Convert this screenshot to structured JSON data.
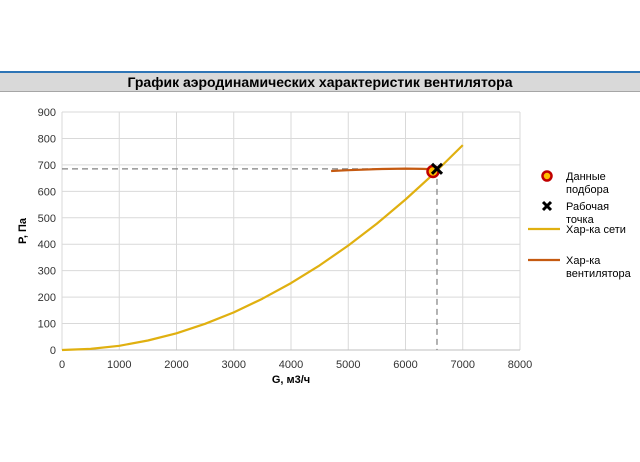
{
  "chart_data": {
    "type": "line",
    "title": "График аэродинамических характеристик вентилятора",
    "xlabel": "G, м3/ч",
    "ylabel": "P, Па",
    "xlim": [
      0,
      8000
    ],
    "ylim": [
      0,
      900
    ],
    "x_ticks": [
      0,
      1000,
      2000,
      3000,
      4000,
      5000,
      6000,
      7000,
      8000
    ],
    "y_ticks": [
      0,
      100,
      200,
      300,
      400,
      500,
      600,
      700,
      800,
      900
    ],
    "grid": true,
    "legend_position": "right",
    "series": [
      {
        "name": "Данные подбора",
        "kind": "marker",
        "marker": "circle",
        "color": "#c00000",
        "fill": "#ffc000",
        "points": [
          {
            "x": 6480,
            "y": 675
          }
        ]
      },
      {
        "name": "Рабочая точка",
        "kind": "marker",
        "marker": "x",
        "color": "#000000",
        "points": [
          {
            "x": 6550,
            "y": 685
          }
        ]
      },
      {
        "name": "Хар-ка сети",
        "kind": "line",
        "color": "#e0b010",
        "points": [
          {
            "x": 0,
            "y": 0
          },
          {
            "x": 500,
            "y": 4
          },
          {
            "x": 1000,
            "y": 16
          },
          {
            "x": 1500,
            "y": 36
          },
          {
            "x": 2000,
            "y": 63
          },
          {
            "x": 2500,
            "y": 99
          },
          {
            "x": 3000,
            "y": 142
          },
          {
            "x": 3500,
            "y": 194
          },
          {
            "x": 4000,
            "y": 253
          },
          {
            "x": 4500,
            "y": 320
          },
          {
            "x": 5000,
            "y": 395
          },
          {
            "x": 5500,
            "y": 478
          },
          {
            "x": 6000,
            "y": 569
          },
          {
            "x": 6500,
            "y": 668
          },
          {
            "x": 7000,
            "y": 775
          }
        ]
      },
      {
        "name": "Хар-ка вентилятора",
        "kind": "line",
        "color": "#c55a11",
        "points": [
          {
            "x": 4700,
            "y": 677
          },
          {
            "x": 5000,
            "y": 680
          },
          {
            "x": 5500,
            "y": 684
          },
          {
            "x": 6000,
            "y": 686
          },
          {
            "x": 6300,
            "y": 685
          },
          {
            "x": 6550,
            "y": 683
          }
        ]
      }
    ],
    "guides": {
      "x": 6550,
      "y": 685,
      "color": "#808080"
    }
  },
  "legend": [
    {
      "key": "data",
      "lines": [
        "Данные",
        "подбора"
      ]
    },
    {
      "key": "work",
      "lines": [
        "Рабочая",
        "точка"
      ]
    },
    {
      "key": "net",
      "lines": [
        "Хар-ка сети"
      ]
    },
    {
      "key": "fan",
      "lines": [
        "Хар-ка",
        "вентилятора"
      ]
    }
  ]
}
